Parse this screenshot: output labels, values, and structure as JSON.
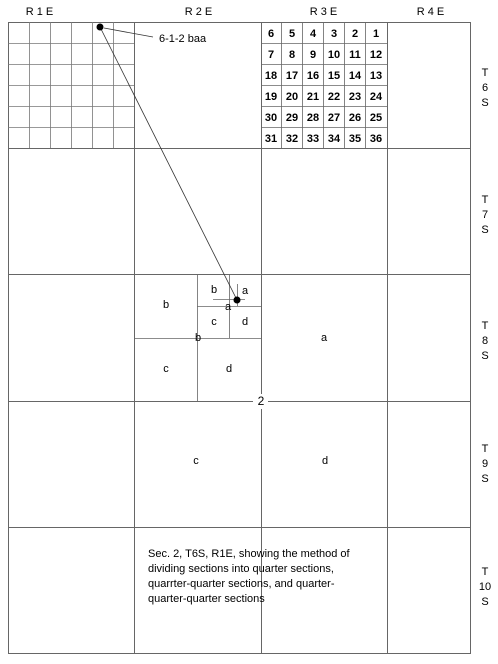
{
  "ranges": [
    "R1E",
    "R2E",
    "R3E",
    "R4E"
  ],
  "townships": [
    [
      "T",
      "6",
      "S"
    ],
    [
      "T",
      "7",
      "S"
    ],
    [
      "T",
      "8",
      "S"
    ],
    [
      "T",
      "9",
      "S"
    ],
    [
      "T",
      "10",
      "S"
    ]
  ],
  "section_grid": [
    [
      "6",
      "5",
      "4",
      "3",
      "2",
      "1"
    ],
    [
      "7",
      "8",
      "9",
      "10",
      "11",
      "12"
    ],
    [
      "18",
      "17",
      "16",
      "15",
      "14",
      "13"
    ],
    [
      "19",
      "20",
      "21",
      "22",
      "23",
      "24"
    ],
    [
      "30",
      "29",
      "28",
      "27",
      "26",
      "25"
    ],
    [
      "31",
      "32",
      "33",
      "34",
      "35",
      "36"
    ]
  ],
  "callout_label": "6-1-2 baa",
  "section_number": "2",
  "quarter_labels": {
    "q_a": "a",
    "q_b": "b",
    "q_c": "c",
    "q_d": "d",
    "qq_b": "b",
    "qq_c": "c",
    "qq_d": "d",
    "qqq_a": "a",
    "qqq_b": "b",
    "qqq_c": "c",
    "qqq_d": "d",
    "qqq_a_upper": "a"
  },
  "note_lines": [
    "Sec. 2, T6S, R1E, showing the method of",
    "dividing sections into quarter sections,",
    "quarrter-quarter sections, and quarter-",
    "quarter-quarter sections"
  ]
}
